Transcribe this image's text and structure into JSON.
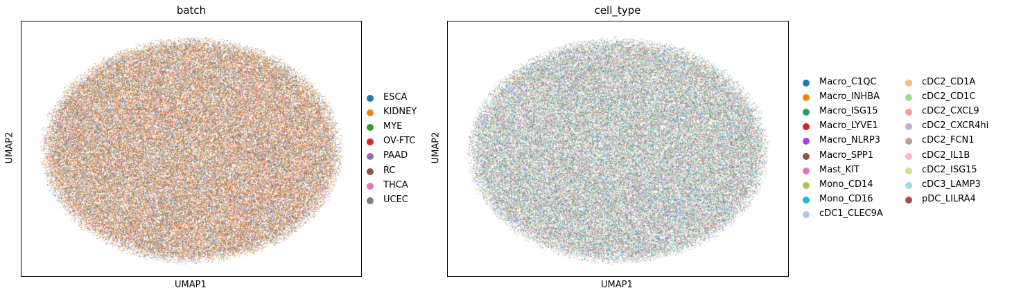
{
  "chart_data": [
    {
      "type": "scatter",
      "title": "batch",
      "xlabel": "UMAP1",
      "ylabel": "UMAP2",
      "grid": false,
      "legend_placement": "right",
      "legend": [
        {
          "label": "ESCA",
          "color": "#1f77b4"
        },
        {
          "label": "KIDNEY",
          "color": "#ff7f0e"
        },
        {
          "label": "MYE",
          "color": "#2ca02c"
        },
        {
          "label": "OV-FTC",
          "color": "#d62728"
        },
        {
          "label": "PAAD",
          "color": "#9467bd"
        },
        {
          "label": "RC",
          "color": "#8c564b"
        },
        {
          "label": "THCA",
          "color": "#e377c2"
        },
        {
          "label": "UCEC",
          "color": "#7f7f7f"
        }
      ],
      "weights": [
        0.18,
        0.42,
        0.06,
        0.06,
        0.06,
        0.06,
        0.04,
        0.12
      ]
    },
    {
      "type": "scatter",
      "title": "cell_type",
      "xlabel": "UMAP1",
      "ylabel": "UMAP2",
      "grid": false,
      "legend_placement": "right",
      "legend": [
        {
          "label": "Macro_C1QC",
          "color": "#1f77b4"
        },
        {
          "label": "Macro_INHBA",
          "color": "#ff7f0e"
        },
        {
          "label": "Macro_ISG15",
          "color": "#279e68"
        },
        {
          "label": "Macro_LYVE1",
          "color": "#d62728"
        },
        {
          "label": "Macro_NLRP3",
          "color": "#aa40fc"
        },
        {
          "label": "Macro_SPP1",
          "color": "#8c564b"
        },
        {
          "label": "Mast_KIT",
          "color": "#e377c2"
        },
        {
          "label": "Mono_CD14",
          "color": "#b5bd61"
        },
        {
          "label": "Mono_CD16",
          "color": "#17becf"
        },
        {
          "label": "cDC1_CLEC9A",
          "color": "#aec7e8"
        },
        {
          "label": "cDC2_CD1A",
          "color": "#ffbb78"
        },
        {
          "label": "cDC2_CD1C",
          "color": "#98df8a"
        },
        {
          "label": "cDC2_CXCL9",
          "color": "#ff9896"
        },
        {
          "label": "cDC2_CXCR4hi",
          "color": "#c5b0d5"
        },
        {
          "label": "cDC2_FCN1",
          "color": "#c49c94"
        },
        {
          "label": "cDC2_IL1B",
          "color": "#f7b6d2"
        },
        {
          "label": "cDC2_ISG15",
          "color": "#dbdb8d"
        },
        {
          "label": "cDC3_LAMP3",
          "color": "#9edae5"
        },
        {
          "label": "pDC_LILRA4",
          "color": "#ad494a"
        }
      ],
      "weights": [
        0.09,
        0.05,
        0.1,
        0.03,
        0.06,
        0.04,
        0.03,
        0.06,
        0.09,
        0.05,
        0.03,
        0.1,
        0.03,
        0.04,
        0.03,
        0.03,
        0.03,
        0.04,
        0.03
      ]
    }
  ]
}
